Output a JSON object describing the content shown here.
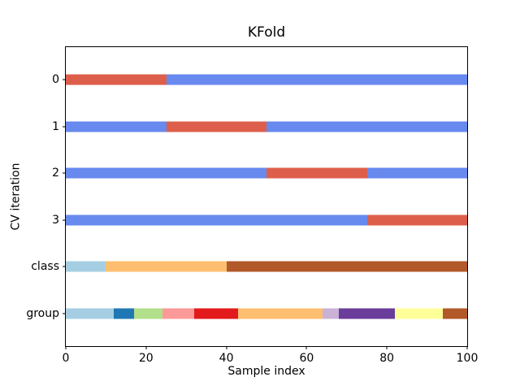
{
  "title": "KFold",
  "axes": {
    "xlabel": "Sample index",
    "ylabel": "CV iteration"
  },
  "chart_data": {
    "type": "heatmap",
    "subtype": "cross-validation-indices",
    "title": "KFold",
    "xlabel": "Sample index",
    "ylabel": "CV iteration",
    "n_samples": 100,
    "n_splits": 4,
    "xlim": [
      0,
      100
    ],
    "ylim": [
      -0.2,
      6.2
    ],
    "x_ticks": [
      0,
      20,
      40,
      60,
      80,
      100
    ],
    "y_tick_labels": [
      "0",
      "1",
      "2",
      "3",
      "class",
      "group"
    ],
    "row_positions": [
      0.5,
      1.5,
      2.5,
      3.5,
      4.5,
      5.5
    ],
    "grid": false,
    "legend_position": "none",
    "colors": {
      "cv_train": "#6889ee",
      "cv_test": "#dd5f4b",
      "spine": "#000000",
      "background": "#ffffff"
    },
    "rows": [
      {
        "label": "0",
        "kind": "cv-fold",
        "segments": [
          {
            "start": 0,
            "end": 25,
            "role": "test",
            "color": "#dd5f4b"
          },
          {
            "start": 25,
            "end": 100,
            "role": "train",
            "color": "#6889ee"
          }
        ]
      },
      {
        "label": "1",
        "kind": "cv-fold",
        "segments": [
          {
            "start": 0,
            "end": 25,
            "role": "train",
            "color": "#6889ee"
          },
          {
            "start": 25,
            "end": 50,
            "role": "test",
            "color": "#dd5f4b"
          },
          {
            "start": 50,
            "end": 100,
            "role": "train",
            "color": "#6889ee"
          }
        ]
      },
      {
        "label": "2",
        "kind": "cv-fold",
        "segments": [
          {
            "start": 0,
            "end": 50,
            "role": "train",
            "color": "#6889ee"
          },
          {
            "start": 50,
            "end": 75,
            "role": "test",
            "color": "#dd5f4b"
          },
          {
            "start": 75,
            "end": 100,
            "role": "train",
            "color": "#6889ee"
          }
        ]
      },
      {
        "label": "3",
        "kind": "cv-fold",
        "segments": [
          {
            "start": 0,
            "end": 75,
            "role": "train",
            "color": "#6889ee"
          },
          {
            "start": 75,
            "end": 100,
            "role": "test",
            "color": "#dd5f4b"
          }
        ]
      },
      {
        "label": "class",
        "kind": "data-attribute",
        "segments": [
          {
            "start": 0,
            "end": 10,
            "role": "class-0",
            "color": "#a6cee3"
          },
          {
            "start": 10,
            "end": 40,
            "role": "class-1",
            "color": "#fdbf6f"
          },
          {
            "start": 40,
            "end": 100,
            "role": "class-2",
            "color": "#b15928"
          }
        ]
      },
      {
        "label": "group",
        "kind": "data-attribute",
        "segments": [
          {
            "start": 0,
            "end": 12,
            "role": "group-0",
            "color": "#a6cee3"
          },
          {
            "start": 12,
            "end": 17,
            "role": "group-1",
            "color": "#1f78b4"
          },
          {
            "start": 17,
            "end": 24,
            "role": "group-2",
            "color": "#b2df8a"
          },
          {
            "start": 24,
            "end": 32,
            "role": "group-3",
            "color": "#fb9a99"
          },
          {
            "start": 32,
            "end": 43,
            "role": "group-4",
            "color": "#e31a1c"
          },
          {
            "start": 43,
            "end": 64,
            "role": "group-5",
            "color": "#fdbf6f"
          },
          {
            "start": 64,
            "end": 68,
            "role": "group-6",
            "color": "#cab2d6"
          },
          {
            "start": 68,
            "end": 82,
            "role": "group-7",
            "color": "#6a3d9a"
          },
          {
            "start": 82,
            "end": 94,
            "role": "group-8",
            "color": "#ffff99"
          },
          {
            "start": 94,
            "end": 100,
            "role": "group-9",
            "color": "#b15928"
          }
        ]
      }
    ]
  }
}
